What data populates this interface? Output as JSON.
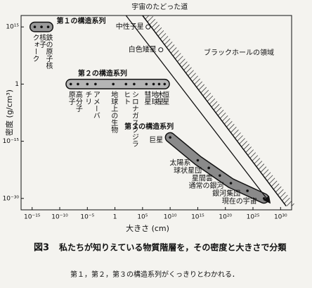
{
  "chart_data": {
    "type": "scatter",
    "title": "図3",
    "caption": "私たちが知りえている物質階層を，その密度と大きさで分類",
    "note": "第１，第２，第３の構造系列がくっきりとわかれる．",
    "xlabel": "大きさ (cm)",
    "ylabel": "密度 (g/cm³)",
    "log_x": true,
    "log_y": true,
    "xlim": [
      1e-17,
      1e+32
    ],
    "ylim": [
      1e-33,
      1e+18
    ],
    "xticks": [
      {
        "value": 1e-15,
        "label": "10⁻¹⁵"
      },
      {
        "value": 1e-10,
        "label": "10⁻¹⁰"
      },
      {
        "value": 1e-05,
        "label": "10⁻⁵"
      },
      1,
      {
        "value": 100000.0,
        "label": "10⁵"
      },
      {
        "value": 10000000000.0,
        "label": "10¹⁰"
      },
      {
        "value": 1000000000000000.0,
        "label": "10¹⁵"
      },
      {
        "value": 1e+20,
        "label": "10²⁰"
      },
      {
        "value": 1e+25,
        "label": "10²⁵"
      },
      {
        "value": 1e+30,
        "label": "10³⁰"
      }
    ],
    "yticks": [
      {
        "value": 1000000000000000.0,
        "label": "10¹⁵"
      },
      1,
      {
        "value": 1e-15,
        "label": "10⁻¹⁵"
      },
      {
        "value": 1e-30,
        "label": "10⁻³⁰"
      }
    ],
    "series": [
      {
        "name": "第１の構造系列",
        "color": "#9a9a9a",
        "labels": [
          "クォーク",
          "核子",
          "鉄の原子核"
        ],
        "x": [
          3e-15,
          5e-14,
          8e-13
        ],
        "values": [
          1000000000000000.0,
          1000000000000000.0,
          1000000000000000.0
        ]
      },
      {
        "name": "第２の構造系列",
        "color": "#b5b5b5",
        "labels": [
          "原子",
          "高分子",
          "チリ",
          "アメーバ",
          "地球上の生物",
          "ヒト",
          "シロナガスクジラ",
          "彗星",
          "地球",
          "木星",
          "恒星"
        ],
        "x": [
          1e-08,
          2e-07,
          1e-05,
          0.0003,
          0.5,
          100.0,
          3000.0,
          500000.0,
          10000000.0,
          100000000.0,
          1000000000.0
        ],
        "values": [
          1,
          1,
          1,
          1,
          1,
          1,
          1,
          1,
          1,
          1,
          1
        ]
      },
      {
        "name": "第３の構造系列",
        "color": "#8a8a8a",
        "labels": [
          "巨星",
          "太陽系",
          "球状星団",
          "星間雲",
          "通常の銀河",
          "銀河集団",
          "現在の宇宙"
        ],
        "x": [
          10000000000.0,
          1000000000000000.0,
          1e+17,
          1e+19,
          1e+21,
          1e+24,
          1e+27
        ],
        "values": [
          1e-14,
          1e-20,
          1e-22,
          1e-24,
          1e-26,
          1e-28,
          1e-30
        ]
      }
    ],
    "points": {
      "labels": [
        "中性子星",
        "白色矮星"
      ],
      "x": [
        1000000.0,
        200000000.0
      ],
      "values": [
        1000000000000000.0,
        1000000000.0
      ]
    },
    "path": {
      "name": "宇宙のたどった道",
      "x": [
        100.0,
        1e+28
      ],
      "values": [
        1e+18,
        1e-31
      ]
    },
    "boundary": {
      "name": "ブラックホールの領域",
      "x": [
        100000.0,
        1e+31
      ],
      "values": [
        1e+18,
        1e-32
      ]
    }
  }
}
